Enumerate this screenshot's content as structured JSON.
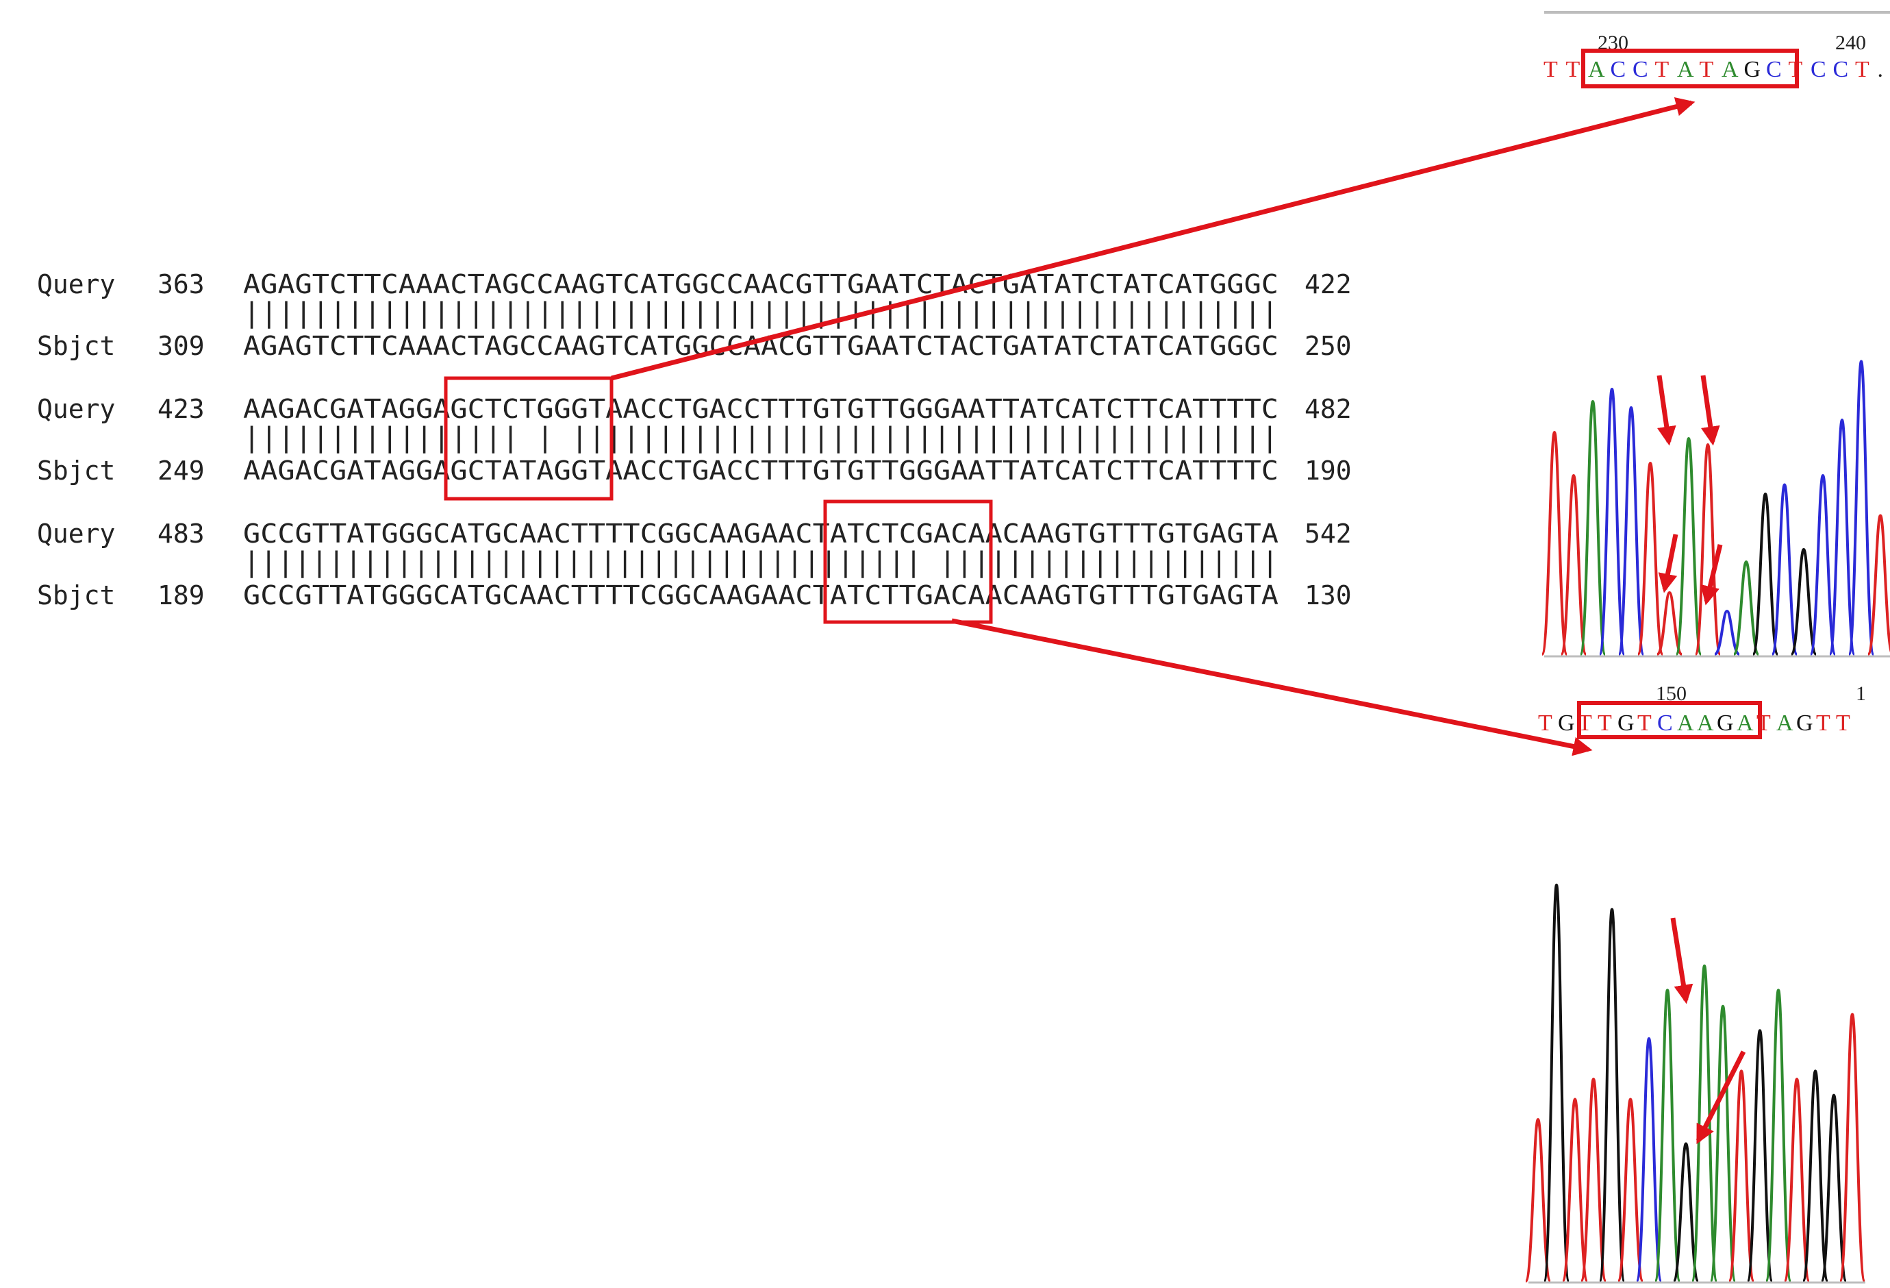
{
  "alignment": {
    "blocks": [
      {
        "query": {
          "label": "Query",
          "start": "363",
          "seq": "AGAGTCTTCAAACTAGCCAAGTCATGGCCAACGTTGAATCTACTGATATCTATCATGGGC",
          "end": "422"
        },
        "match": "||||||||||||||||||||||||||||||||||||||||||||||||||||||||||||",
        "sbjct": {
          "label": "Sbjct",
          "start": "309",
          "seq": "AGAGTCTTCAAACTAGCCAAGTCATGGCCAACGTTGAATCTACTGATATCTATCATGGGC",
          "end": "250"
        }
      },
      {
        "query": {
          "label": "Query",
          "start": "423",
          "seq": "AAGACGATAGGAGCTCTGGGTAACCTGACCTTTGTGTTGGGAATTATCATCTTCATTTTC",
          "end": "482"
        },
        "match": "|||||||||||||||| | |||||||||||||||||||||||||||||||||||||||||",
        "sbjct": {
          "label": "Sbjct",
          "start": "249",
          "seq": "AAGACGATAGGAGCTATAGGTAACCTGACCTTTGTGTTGGGAATTATCATCTTCATTTTC",
          "end": "190"
        }
      },
      {
        "query": {
          "label": "Query",
          "start": "483",
          "seq": "GCCGTTATGGGCATGCAACTTTTCGGCAAGAACTATCTCGACAACAAGTGTTTGTGAGTA",
          "end": "542"
        },
        "match": "|||||||||||||||||||||||||||||||||||||||| ||||||||||||||||||||",
        "sbjct": {
          "label": "Sbjct",
          "start": "189",
          "seq": "GCCGTTATGGGCATGCAACTTTTCGGCAAGAACTATCTTGACAACAAGTGTTTGTGAGTA",
          "end": "130"
        }
      }
    ]
  },
  "traces": [
    {
      "pos_labels": [
        "230",
        "240"
      ],
      "bases": [
        "T",
        "T",
        "A",
        "C",
        "C",
        "T",
        "A",
        "T",
        "A",
        "G",
        "C",
        "T",
        "C",
        "C",
        "T",
        "."
      ],
      "peaks": [
        {
          "base": "T",
          "h": 0.72
        },
        {
          "base": "T",
          "h": 0.58
        },
        {
          "base": "A",
          "h": 0.82
        },
        {
          "base": "C",
          "h": 0.86
        },
        {
          "base": "C",
          "h": 0.8
        },
        {
          "base": "T",
          "h": 0.62
        },
        {
          "base": "T",
          "h": 0.2
        },
        {
          "base": "A",
          "h": 0.7
        },
        {
          "base": "T",
          "h": 0.68
        },
        {
          "base": "C",
          "h": 0.14
        },
        {
          "base": "A",
          "h": 0.3
        },
        {
          "base": "G",
          "h": 0.52
        },
        {
          "base": "C",
          "h": 0.55
        },
        {
          "base": "G",
          "h": 0.34
        },
        {
          "base": "C",
          "h": 0.58
        },
        {
          "base": "C",
          "h": 0.76
        },
        {
          "base": "C",
          "h": 0.95
        },
        {
          "base": "T",
          "h": 0.45
        }
      ]
    },
    {
      "pos_labels": [
        "150",
        "1"
      ],
      "bases": [
        "T",
        "G",
        "T",
        "T",
        "G",
        "T",
        "C",
        "A",
        "A",
        "G",
        "A",
        "T",
        "A",
        "G",
        "T",
        "T"
      ],
      "peaks": [
        {
          "base": "T",
          "h": 0.4
        },
        {
          "base": "G",
          "h": 0.98
        },
        {
          "base": "T",
          "h": 0.45
        },
        {
          "base": "T",
          "h": 0.5
        },
        {
          "base": "G",
          "h": 0.92
        },
        {
          "base": "T",
          "h": 0.45
        },
        {
          "base": "C",
          "h": 0.6
        },
        {
          "base": "A",
          "h": 0.72
        },
        {
          "base": "G",
          "h": 0.34
        },
        {
          "base": "A",
          "h": 0.78
        },
        {
          "base": "A",
          "h": 0.68
        },
        {
          "base": "T",
          "h": 0.52
        },
        {
          "base": "G",
          "h": 0.62
        },
        {
          "base": "A",
          "h": 0.72
        },
        {
          "base": "T",
          "h": 0.5
        },
        {
          "base": "G",
          "h": 0.52
        },
        {
          "base": "G",
          "h": 0.46
        },
        {
          "base": "T",
          "h": 0.66
        }
      ]
    }
  ],
  "colors": {
    "A": "#2e8b2e",
    "C": "#2a2ad8",
    "G": "#111111",
    "T": "#dd2222",
    "highlight": "#e0141b"
  }
}
